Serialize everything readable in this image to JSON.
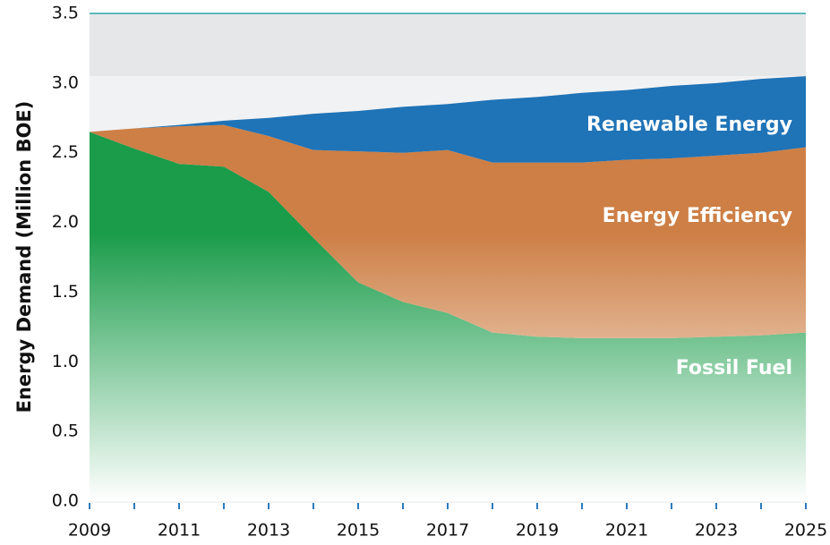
{
  "chart_data": {
    "type": "stacked-area",
    "y_label": "Energy Demand (Million BOE)",
    "x": [
      2009,
      2010,
      2011,
      2012,
      2013,
      2014,
      2015,
      2016,
      2017,
      2018,
      2019,
      2020,
      2021,
      2022,
      2023,
      2024,
      2025
    ],
    "series": [
      {
        "name": "Fossil Fuel",
        "color": "#1a9c4a",
        "values": [
          2.65,
          2.53,
          2.42,
          2.4,
          2.22,
          1.89,
          1.57,
          1.43,
          1.35,
          1.21,
          1.18,
          1.17,
          1.17,
          1.17,
          1.18,
          1.19,
          1.21
        ]
      },
      {
        "name": "Energy Efficiency",
        "color": "#cd7f45",
        "values": [
          0,
          0.145,
          0.27,
          0.3,
          0.4,
          0.63,
          0.94,
          1.07,
          1.17,
          1.22,
          1.25,
          1.26,
          1.28,
          1.29,
          1.3,
          1.31,
          1.33
        ]
      },
      {
        "name": "Renewable Energy",
        "color": "#1f73b7",
        "values": [
          0,
          0,
          0.01,
          0.03,
          0.13,
          0.26,
          0.29,
          0.33,
          0.33,
          0.45,
          0.47,
          0.5,
          0.5,
          0.52,
          0.52,
          0.53,
          0.51
        ]
      }
    ],
    "xlim": [
      2009,
      2025
    ],
    "xticks": [
      2009,
      2011,
      2013,
      2015,
      2017,
      2019,
      2021,
      2023,
      2025
    ],
    "ylim": [
      0,
      3.5
    ],
    "yticks": [
      {
        "value": 0,
        "label": "0.0"
      },
      0.5,
      {
        "value": 1,
        "label": "1.0"
      },
      1.5,
      {
        "value": 2,
        "label": "2.0"
      },
      2.5,
      {
        "value": 3,
        "label": "3.0"
      },
      3.5
    ]
  }
}
